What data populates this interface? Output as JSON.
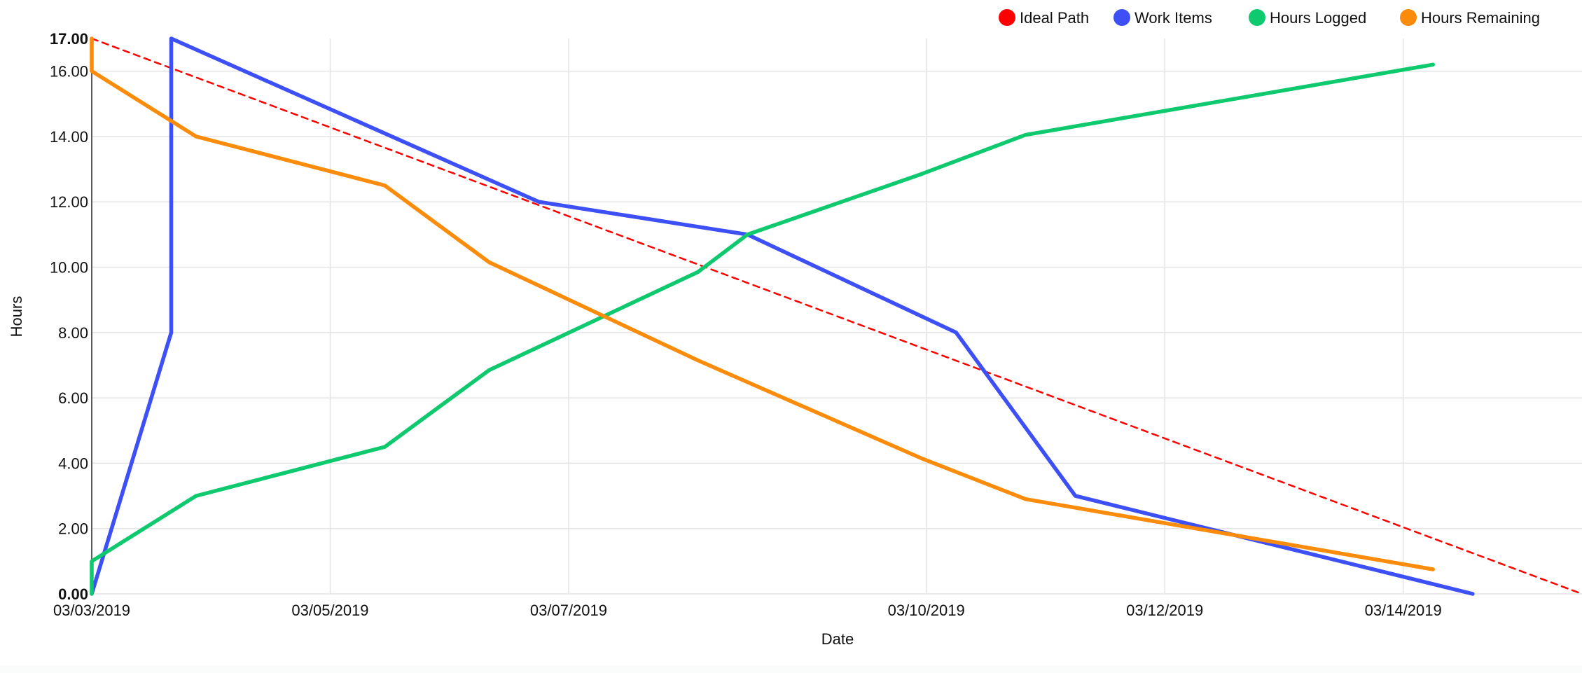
{
  "chart_data": {
    "type": "line",
    "xlabel": "Date",
    "ylabel": "Hours",
    "x_axis": {
      "type": "date",
      "min": "2019-03-03",
      "max": "2019-03-15T12:00",
      "tick_dates": [
        "2019-03-03",
        "2019-03-05",
        "2019-03-07",
        "2019-03-10",
        "2019-03-12",
        "2019-03-14"
      ],
      "tick_labels": [
        "03/03/2019",
        "03/05/2019",
        "03/07/2019",
        "03/10/2019",
        "03/12/2019",
        "03/14/2019"
      ]
    },
    "y_axis": {
      "min": 0,
      "max": 17,
      "tick_values": [
        0,
        2,
        4,
        6,
        8,
        10,
        12,
        14,
        16,
        17
      ],
      "tick_labels": [
        "0.00",
        "2.00",
        "4.00",
        "6.00",
        "8.00",
        "10.00",
        "12.00",
        "14.00",
        "16.00",
        "17.00"
      ]
    },
    "grid": true,
    "legend_position": "top-right",
    "series": [
      {
        "name": "Ideal Path",
        "color": "#ff0000",
        "style": "dashed",
        "points": [
          {
            "x": "2019-03-03T00:00",
            "y": 17
          },
          {
            "x": "2019-03-15T12:00",
            "y": 0
          }
        ]
      },
      {
        "name": "Work Items",
        "color": "#3d50f5",
        "style": "solid",
        "points": [
          {
            "x": "2019-03-03T00:00",
            "y": 0
          },
          {
            "x": "2019-03-03T16:00",
            "y": 8
          },
          {
            "x": "2019-03-03T16:00",
            "y": 17
          },
          {
            "x": "2019-03-06T18:00",
            "y": 12
          },
          {
            "x": "2019-03-08T12:00",
            "y": 11
          },
          {
            "x": "2019-03-10T06:00",
            "y": 8
          },
          {
            "x": "2019-03-11T06:00",
            "y": 3
          },
          {
            "x": "2019-03-14T14:00",
            "y": 0
          }
        ]
      },
      {
        "name": "Hours Logged",
        "color": "#0ec96d",
        "style": "solid",
        "points": [
          {
            "x": "2019-03-03T00:00",
            "y": 0
          },
          {
            "x": "2019-03-03T00:00",
            "y": 1
          },
          {
            "x": "2019-03-03T21:00",
            "y": 3
          },
          {
            "x": "2019-03-05T11:00",
            "y": 4.5
          },
          {
            "x": "2019-03-06T08:00",
            "y": 6.85
          },
          {
            "x": "2019-03-08T02:00",
            "y": 9.85
          },
          {
            "x": "2019-03-08T12:00",
            "y": 11
          },
          {
            "x": "2019-03-09T23:00",
            "y": 12.85
          },
          {
            "x": "2019-03-10T20:00",
            "y": 14.05
          },
          {
            "x": "2019-03-14T06:00",
            "y": 16.2
          }
        ]
      },
      {
        "name": "Hours Remaining",
        "color": "#fb8c0b",
        "style": "solid",
        "points": [
          {
            "x": "2019-03-03T00:00",
            "y": 17
          },
          {
            "x": "2019-03-03T00:00",
            "y": 16
          },
          {
            "x": "2019-03-03T21:00",
            "y": 14
          },
          {
            "x": "2019-03-05T11:00",
            "y": 12.5
          },
          {
            "x": "2019-03-06T08:00",
            "y": 10.15
          },
          {
            "x": "2019-03-08T02:00",
            "y": 7.15
          },
          {
            "x": "2019-03-09T23:00",
            "y": 4.15
          },
          {
            "x": "2019-03-10T20:00",
            "y": 2.9
          },
          {
            "x": "2019-03-14T06:00",
            "y": 0.75
          }
        ]
      }
    ]
  }
}
